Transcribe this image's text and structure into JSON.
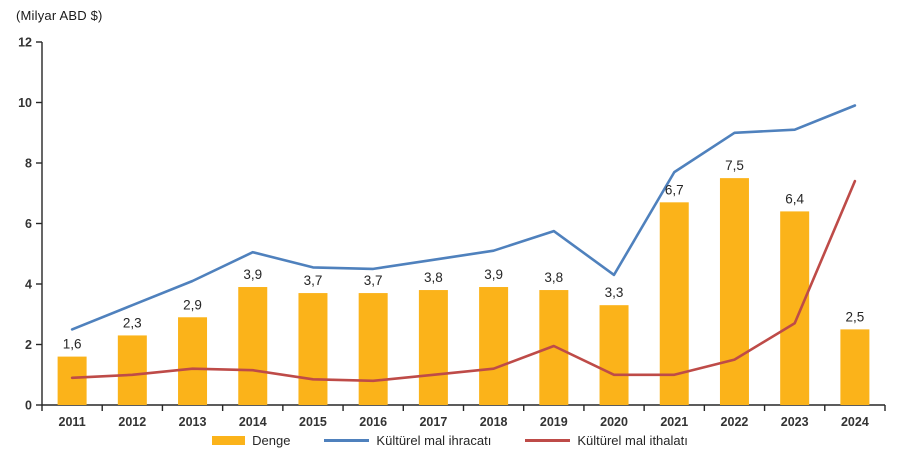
{
  "title": "(Milyar ABD $)",
  "chart_data": {
    "type": "combo-bar-line",
    "title": "(Milyar ABD $)",
    "categories": [
      "2011",
      "2012",
      "2013",
      "2014",
      "2015",
      "2016",
      "2017",
      "2018",
      "2019",
      "2020",
      "2021",
      "2022",
      "2023",
      "2024"
    ],
    "bar_series": {
      "name": "Denge",
      "color": "#FBB31A",
      "values": [
        1.6,
        2.3,
        2.9,
        3.9,
        3.7,
        3.7,
        3.8,
        3.9,
        3.8,
        3.3,
        6.7,
        7.5,
        6.4,
        2.5
      ],
      "labels": [
        "1,6",
        "2,3",
        "2,9",
        "3,9",
        "3,7",
        "3,7",
        "3,8",
        "3,9",
        "3,8",
        "3,3",
        "6,7",
        "7,5",
        "6,4",
        "2,5"
      ]
    },
    "line_series": [
      {
        "name": "Kültürel mal ihracatı",
        "color": "#4F81BD",
        "values": [
          2.5,
          3.3,
          4.1,
          5.05,
          4.55,
          4.5,
          4.8,
          5.1,
          5.75,
          4.3,
          7.7,
          9.0,
          9.1,
          9.9
        ]
      },
      {
        "name": "Kültürel mal ithalatı",
        "color": "#BE4B48",
        "values": [
          0.9,
          1.0,
          1.2,
          1.15,
          0.85,
          0.8,
          1.0,
          1.2,
          1.95,
          1.0,
          1.0,
          1.5,
          2.7,
          7.4
        ]
      }
    ],
    "ylabel": "(Milyar ABD $)",
    "xlabel": "",
    "ylim": [
      0,
      12
    ],
    "yticks": [
      0,
      2,
      4,
      6,
      8,
      10,
      12
    ],
    "grid": false,
    "legend_position": "bottom",
    "axis_color": "#262626"
  }
}
